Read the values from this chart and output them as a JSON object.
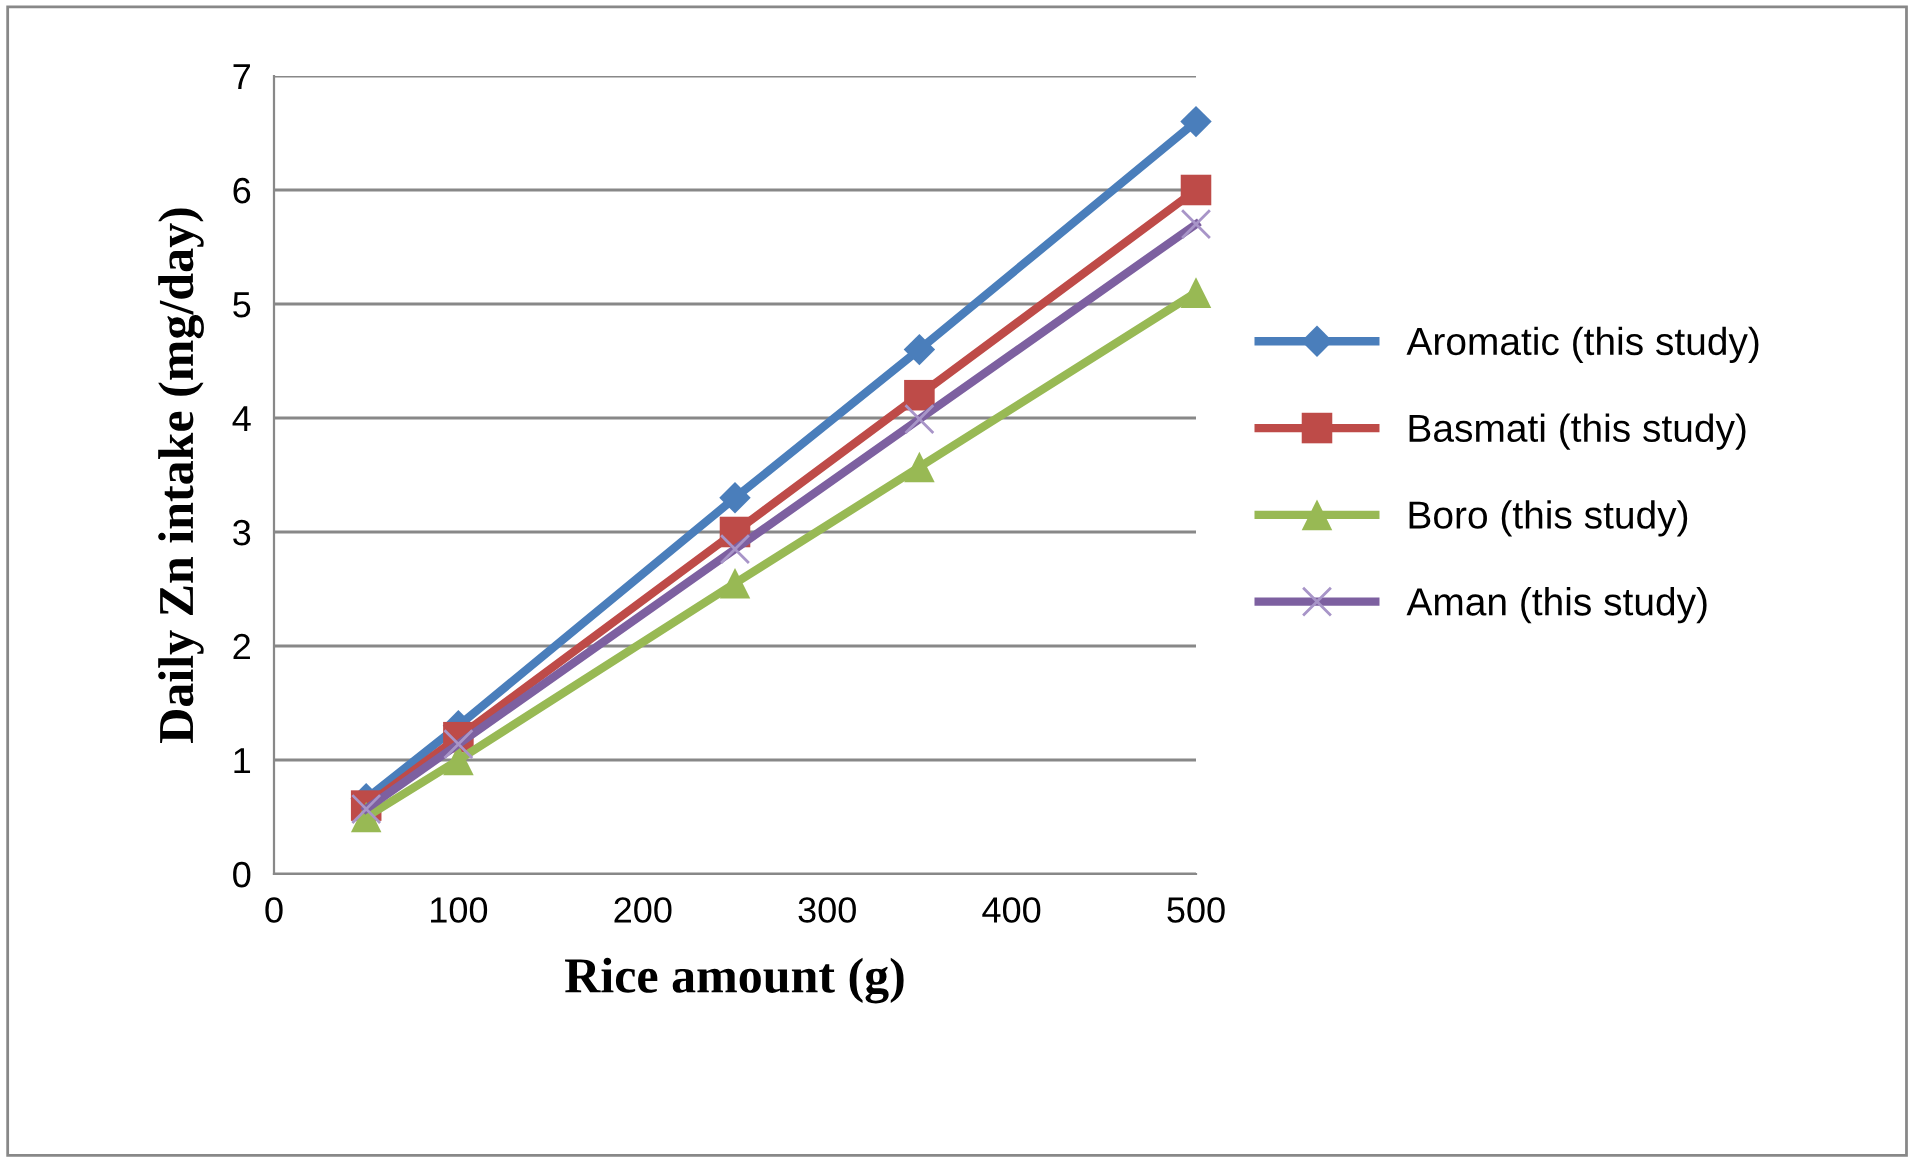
{
  "chart_data": {
    "type": "line",
    "xlabel": "Rice amount (g)",
    "ylabel": "Daily Zn intake (mg/day)",
    "x": [
      50,
      100,
      250,
      350,
      500
    ],
    "series": [
      {
        "name": "Aromatic (this study)",
        "color": "#4a7ebb",
        "marker": "diamond",
        "values": [
          0.66,
          1.3,
          3.3,
          4.6,
          6.6
        ]
      },
      {
        "name": "Basmati (this study)",
        "color": "#be4b48",
        "marker": "square",
        "values": [
          0.6,
          1.2,
          3.0,
          4.2,
          6.0
        ]
      },
      {
        "name": "Boro (this study)",
        "color": "#98b954",
        "marker": "triangle",
        "values": [
          0.5,
          1.0,
          2.55,
          3.57,
          5.1
        ]
      },
      {
        "name": "Aman (this study)",
        "color": "#7d60a0",
        "marker": "cross",
        "values": [
          0.57,
          1.14,
          2.85,
          3.99,
          5.7
        ]
      }
    ],
    "xlim": [
      0,
      500
    ],
    "xticks": [
      0,
      100,
      200,
      300,
      400,
      500
    ],
    "ylim": [
      0,
      7
    ],
    "yticks": [
      0,
      1,
      2,
      3,
      4,
      5,
      6,
      7
    ],
    "grid": "y",
    "legend": "right",
    "line_style": "solid"
  }
}
